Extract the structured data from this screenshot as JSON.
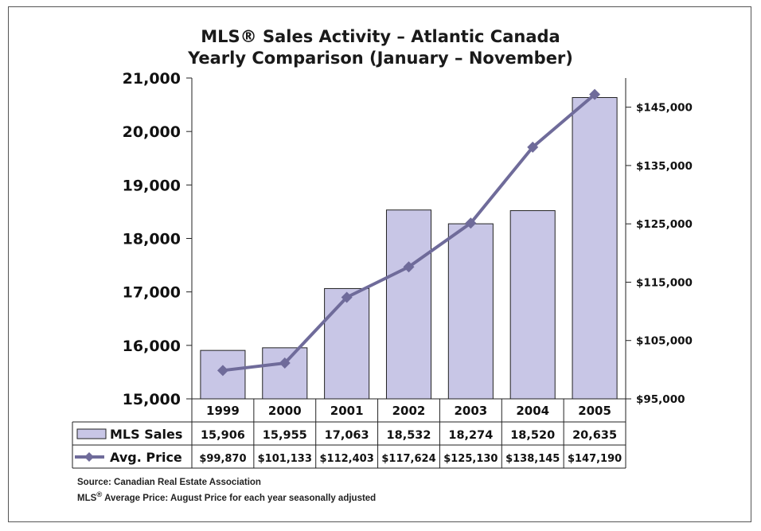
{
  "chart_data": {
    "type": "bar",
    "title_line1": "MLS® Sales Activity – Atlantic Canada",
    "title_line2": "Yearly Comparison (January – November)",
    "categories": [
      "1999",
      "2000",
      "2001",
      "2002",
      "2003",
      "2004",
      "2005"
    ],
    "series": [
      {
        "name": "MLS Sales",
        "type": "bar",
        "axis": "left",
        "values": [
          15906,
          15955,
          17063,
          18532,
          18274,
          18520,
          20635
        ],
        "display": [
          "15,906",
          "15,955",
          "17,063",
          "18,532",
          "18,274",
          "18,520",
          "20,635"
        ],
        "color": "#c8c6e6"
      },
      {
        "name": "Avg. Price",
        "type": "line",
        "axis": "right",
        "values": [
          99870,
          101133,
          112403,
          117624,
          125130,
          138145,
          147190
        ],
        "display": [
          "$99,870",
          "$101,133",
          "$112,403",
          "$117,624",
          "$125,130",
          "$138,145",
          "$147,190"
        ],
        "color": "#6f6b9a"
      }
    ],
    "y_left": {
      "lim": [
        15000,
        21000
      ],
      "ticks": [
        15000,
        16000,
        17000,
        18000,
        19000,
        20000,
        21000
      ],
      "tick_labels": [
        "15,000",
        "16,000",
        "17,000",
        "18,000",
        "19,000",
        "20,000",
        "21,000"
      ]
    },
    "y_right": {
      "lim": [
        95000,
        150000
      ],
      "ticks": [
        95000,
        105000,
        115000,
        125000,
        135000,
        145000
      ],
      "tick_labels": [
        "$95,000",
        "$105,000",
        "$115,000",
        "$125,000",
        "$135,000",
        "$145,000"
      ]
    },
    "grid": false,
    "legend": "data-table"
  },
  "notes": {
    "source_label": "Source:",
    "source_text": "Canadian Real Estate Association",
    "footnote_prefix": "MLS",
    "footnote_reg": "®",
    "footnote_text": " Average Price: August Price for each year seasonally adjusted"
  }
}
